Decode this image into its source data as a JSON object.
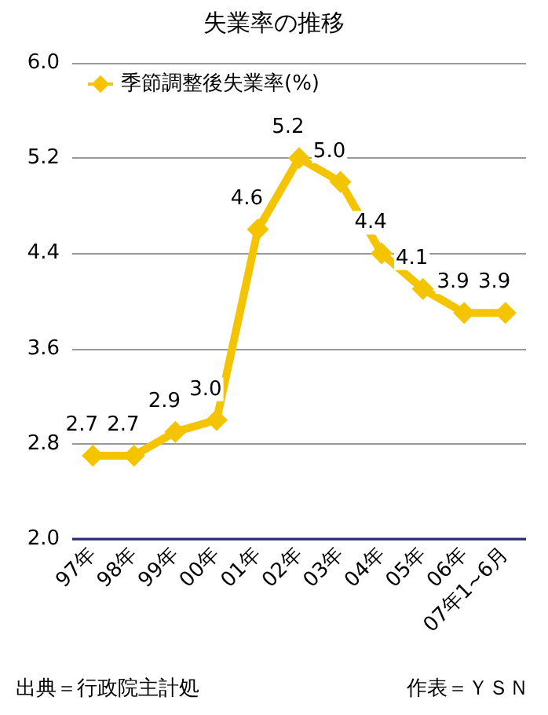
{
  "chart_data": {
    "type": "line",
    "title": "失業率の推移",
    "categories": [
      "97年",
      "98年",
      "99年",
      "00年",
      "01年",
      "02年",
      "03年",
      "04年",
      "05年",
      "06年",
      "07年1~6月"
    ],
    "series": [
      {
        "name": "季節調整後失業率(%)",
        "color": "#f5c400",
        "values": [
          2.7,
          2.7,
          2.9,
          3.0,
          4.6,
          5.2,
          5.0,
          4.4,
          4.1,
          3.9,
          3.9
        ],
        "value_labels": [
          "2.7",
          "2.7",
          "2.9",
          "3.0",
          "4.6",
          "5.2",
          "5.0",
          "4.4",
          "4.1",
          "3.9",
          "3.9"
        ]
      }
    ],
    "ylim": [
      2,
      6
    ],
    "yticks": [
      {
        "value": 2,
        "label": "2.0"
      },
      {
        "value": 2.8,
        "label": "2.8"
      },
      {
        "value": 3.6,
        "label": "3.6"
      },
      {
        "value": 4.4,
        "label": "4.4"
      },
      {
        "value": 5.2,
        "label": "5.2"
      },
      {
        "value": 6,
        "label": "6.0"
      }
    ],
    "grid": "y",
    "legend": "top left",
    "marker": "diamond",
    "line_style": "solid",
    "annotations": [
      "出典＝行政院主計処",
      "作表＝ＹＳＮ"
    ]
  }
}
